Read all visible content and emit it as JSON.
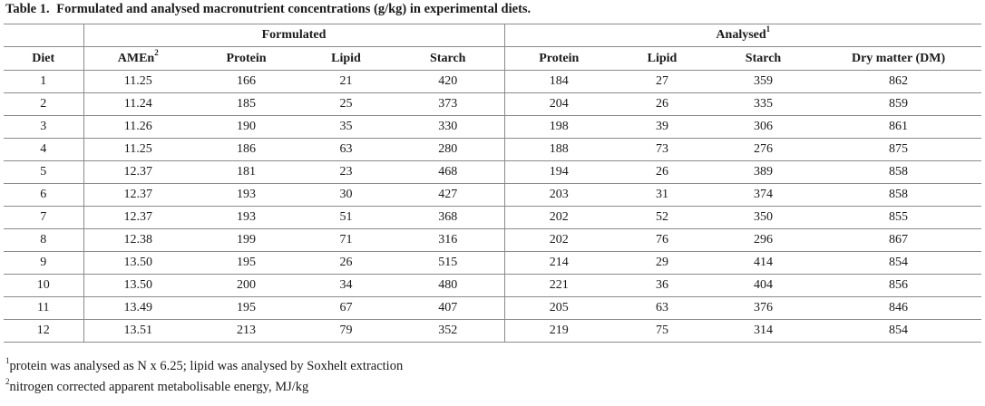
{
  "caption": {
    "label": "Table 1.",
    "text": "Formulated and analysed macronutrient concentrations (g/kg) in experimental diets."
  },
  "header": {
    "formulated": "Formulated",
    "analysed": "Analysed",
    "analysed_sup": "1",
    "diet": "Diet",
    "amen": "AMEn",
    "amen_sup": "2",
    "protein": "Protein",
    "lipid": "Lipid",
    "starch": "Starch",
    "a_protein": "Protein",
    "a_lipid": "Lipid",
    "a_starch": "Starch",
    "dry_matter": "Dry matter (DM)"
  },
  "rows": [
    [
      "1",
      "11.25",
      "166",
      "21",
      "420",
      "184",
      "27",
      "359",
      "862"
    ],
    [
      "2",
      "11.24",
      "185",
      "25",
      "373",
      "204",
      "26",
      "335",
      "859"
    ],
    [
      "3",
      "11.26",
      "190",
      "35",
      "330",
      "198",
      "39",
      "306",
      "861"
    ],
    [
      "4",
      "11.25",
      "186",
      "63",
      "280",
      "188",
      "73",
      "276",
      "875"
    ],
    [
      "5",
      "12.37",
      "181",
      "23",
      "468",
      "194",
      "26",
      "389",
      "858"
    ],
    [
      "6",
      "12.37",
      "193",
      "30",
      "427",
      "203",
      "31",
      "374",
      "858"
    ],
    [
      "7",
      "12.37",
      "193",
      "51",
      "368",
      "202",
      "52",
      "350",
      "855"
    ],
    [
      "8",
      "12.38",
      "199",
      "71",
      "316",
      "202",
      "76",
      "296",
      "867"
    ],
    [
      "9",
      "13.50",
      "195",
      "26",
      "515",
      "214",
      "29",
      "414",
      "854"
    ],
    [
      "10",
      "13.50",
      "200",
      "34",
      "480",
      "221",
      "36",
      "404",
      "856"
    ],
    [
      "11",
      "13.49",
      "195",
      "67",
      "407",
      "205",
      "63",
      "376",
      "846"
    ],
    [
      "12",
      "13.51",
      "213",
      "79",
      "352",
      "219",
      "75",
      "314",
      "854"
    ]
  ],
  "footnotes": [
    {
      "sup": "1",
      "text": "protein was analysed as N x 6.25; lipid was analysed by Soxhelt extraction"
    },
    {
      "sup": "2",
      "text": "nitrogen corrected apparent metabolisable energy, MJ/kg"
    }
  ]
}
